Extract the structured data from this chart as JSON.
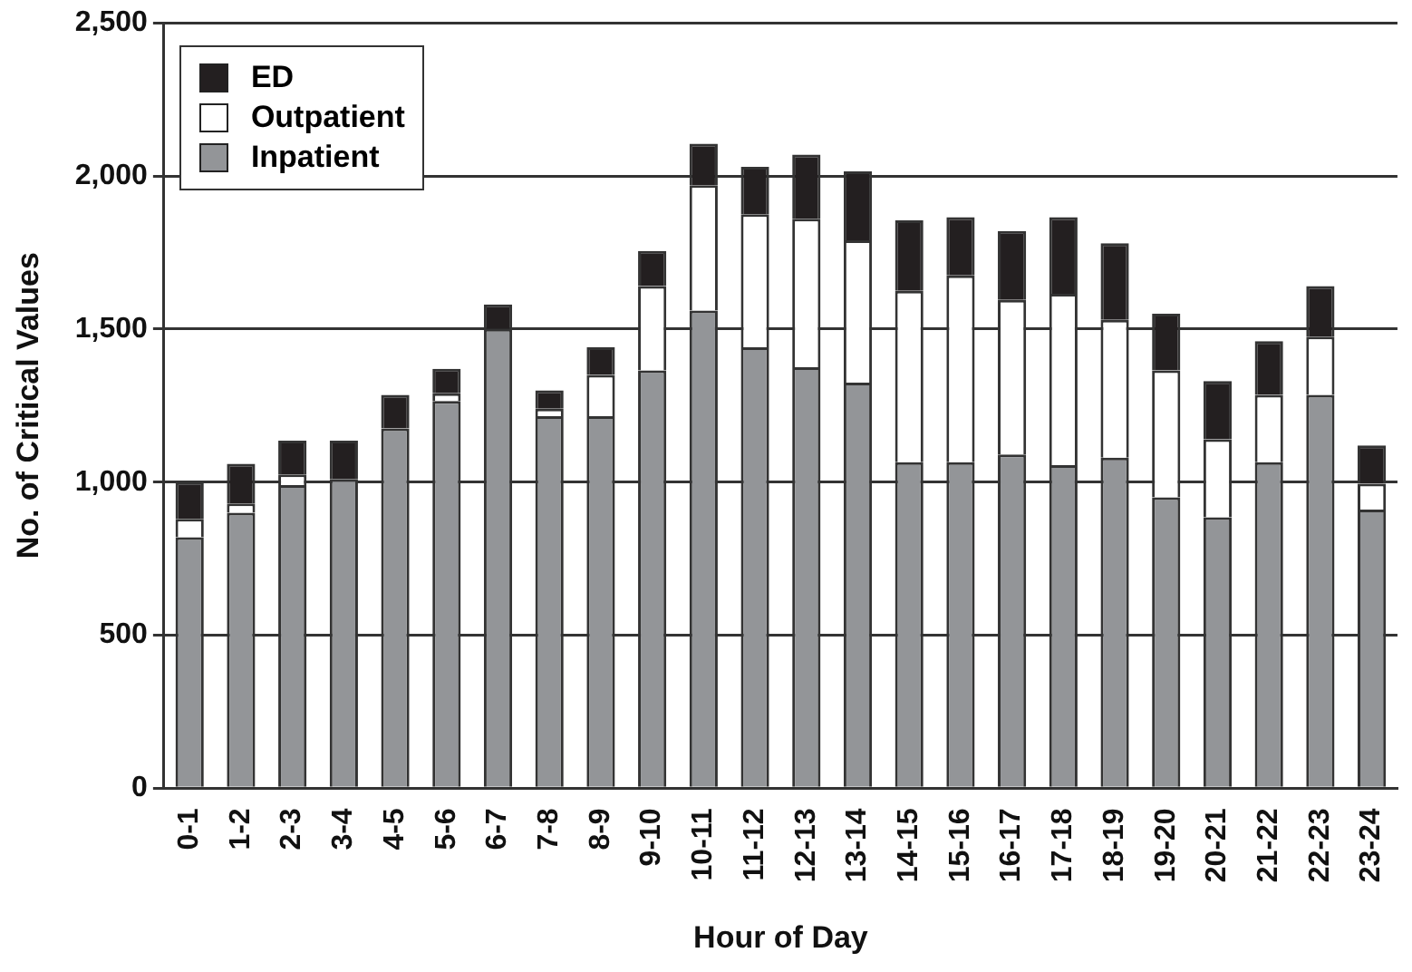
{
  "chart_data": {
    "type": "bar",
    "stacked": true,
    "xlabel": "Hour of Day",
    "ylabel": "No. of Critical Values",
    "categories": [
      "0-1",
      "1-2",
      "2-3",
      "3-4",
      "4-5",
      "5-6",
      "6-7",
      "7-8",
      "8-9",
      "9-10",
      "10-11",
      "11-12",
      "12-13",
      "13-14",
      "14-15",
      "15-16",
      "16-17",
      "17-18",
      "18-19",
      "19-20",
      "20-21",
      "21-22",
      "22-23",
      "23-24"
    ],
    "series": [
      {
        "name": "Inpatient",
        "color": "#939598",
        "values": [
          820,
          900,
          990,
          1010,
          1175,
          1265,
          1500,
          1215,
          1215,
          1365,
          1560,
          1440,
          1375,
          1325,
          1065,
          1065,
          1090,
          1055,
          1080,
          950,
          885,
          1065,
          1285,
          910
        ]
      },
      {
        "name": "Outpatient",
        "color": "#ffffff",
        "values": [
          60,
          30,
          35,
          0,
          0,
          25,
          0,
          25,
          135,
          275,
          410,
          435,
          485,
          465,
          560,
          610,
          505,
          560,
          450,
          415,
          255,
          220,
          190,
          85
        ]
      },
      {
        "name": "ED",
        "color": "#231f20",
        "values": [
          120,
          130,
          110,
          125,
          110,
          80,
          80,
          60,
          90,
          115,
          135,
          155,
          210,
          225,
          230,
          190,
          225,
          250,
          250,
          185,
          190,
          175,
          165,
          125
        ]
      }
    ],
    "ylim": [
      0,
      2500
    ],
    "yticks": [
      {
        "value": 0,
        "label": "0"
      },
      {
        "value": 500,
        "label": "500"
      },
      {
        "value": 1000,
        "label": "1,000"
      },
      {
        "value": 1500,
        "label": "1,500"
      },
      {
        "value": 2000,
        "label": "2,000"
      },
      {
        "value": 2500,
        "label": "2,500"
      }
    ],
    "grid": "y",
    "legend": "top left"
  }
}
